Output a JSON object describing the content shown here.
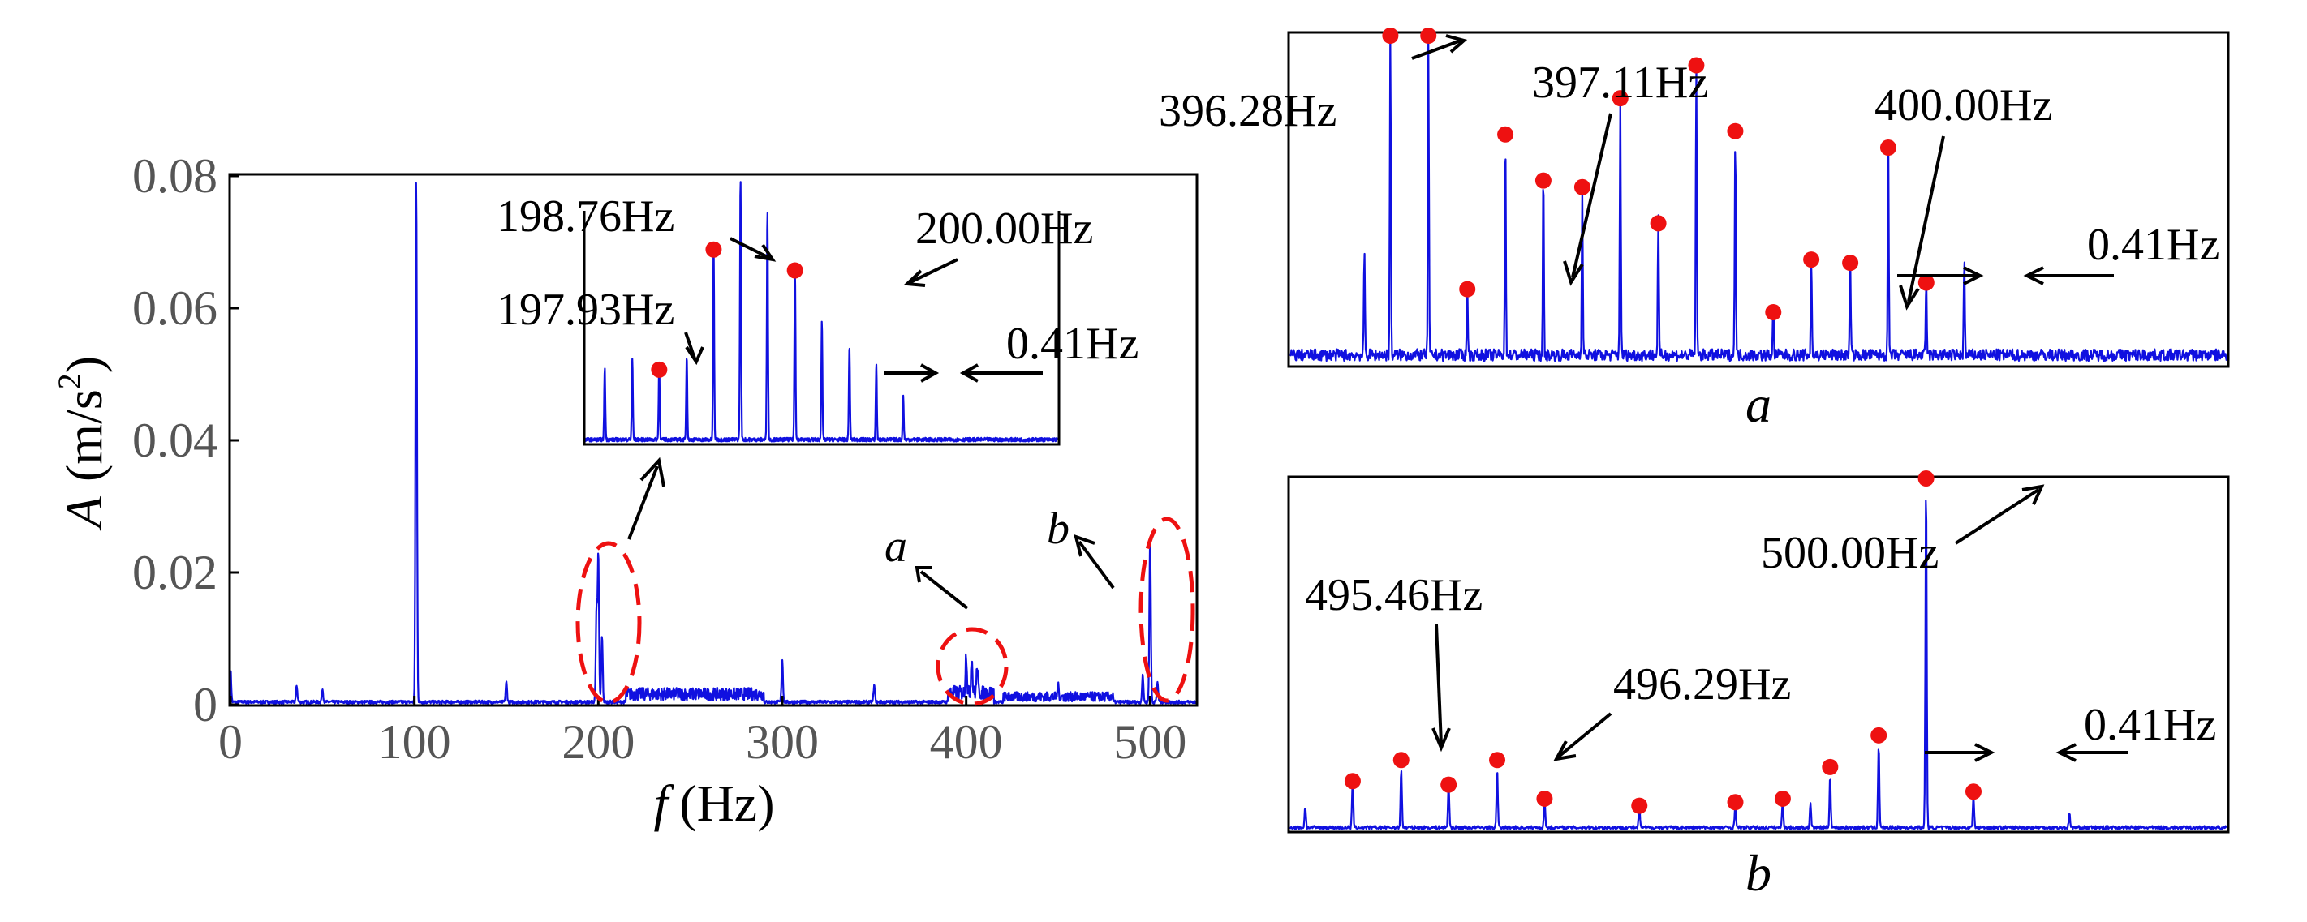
{
  "chart_data": [
    {
      "id": "main",
      "type": "line",
      "xlabel_symbol": "f",
      "xlabel_unit": "(Hz)",
      "ylabel_symbol": "A",
      "ylabel_unit_pre": "(m/s",
      "ylabel_unit_sup": "2",
      "ylabel_unit_post": ")",
      "xlim": [
        0,
        525
      ],
      "ylim": [
        0,
        0.08
      ],
      "x_ticks": [
        0,
        100,
        200,
        300,
        400,
        500
      ],
      "x_tick_labels": [
        "0",
        "100",
        "200",
        "300",
        "400",
        "500"
      ],
      "y_ticks": [
        0,
        0.02,
        0.04,
        0.06,
        0.08
      ],
      "y_tick_labels": [
        "0",
        "0.02",
        "0.04",
        "0.06",
        "0.08"
      ],
      "peaks": [
        {
          "x": 0,
          "y": 0.005
        },
        {
          "x": 36,
          "y": 0.0025
        },
        {
          "x": 50,
          "y": 0.002
        },
        {
          "x": 101,
          "y": 0.079
        },
        {
          "x": 150,
          "y": 0.003
        },
        {
          "x": 199,
          "y": 0.014
        },
        {
          "x": 200,
          "y": 0.022
        },
        {
          "x": 202,
          "y": 0.01
        },
        {
          "x": 300,
          "y": 0.0065
        },
        {
          "x": 350,
          "y": 0.0025
        },
        {
          "x": 400,
          "y": 0.006
        },
        {
          "x": 403,
          "y": 0.0055
        },
        {
          "x": 406,
          "y": 0.004
        },
        {
          "x": 450,
          "y": 0.0015
        },
        {
          "x": 496,
          "y": 0.004
        },
        {
          "x": 500,
          "y": 0.025
        },
        {
          "x": 504,
          "y": 0.003
        }
      ],
      "annotations": [
        {
          "text": "a",
          "target_x": 403
        },
        {
          "text": "b",
          "target_x": 500
        }
      ]
    },
    {
      "id": "inset",
      "type": "line",
      "xlim": [
        196.8,
        204.0
      ],
      "ylim": [
        0,
        1
      ],
      "peaks": [
        {
          "x": 197.1,
          "y": 0.27
        },
        {
          "x": 197.52,
          "y": 0.31
        },
        {
          "x": 197.93,
          "y": 0.28
        },
        {
          "x": 198.35,
          "y": 0.32
        },
        {
          "x": 198.76,
          "y": 0.74
        },
        {
          "x": 199.17,
          "y": 1.0
        },
        {
          "x": 199.58,
          "y": 0.88
        },
        {
          "x": 200.0,
          "y": 0.66
        },
        {
          "x": 200.41,
          "y": 0.46
        },
        {
          "x": 200.83,
          "y": 0.36
        },
        {
          "x": 201.24,
          "y": 0.29
        },
        {
          "x": 201.65,
          "y": 0.17
        }
      ],
      "markers": [
        197.93,
        198.76,
        200.0
      ],
      "labels": [
        "197.93Hz",
        "198.76Hz",
        "200.00Hz"
      ],
      "spacing_label": "0.41Hz"
    },
    {
      "id": "a",
      "type": "line",
      "caption": "a",
      "xlim": [
        395.2,
        405.3
      ],
      "ylim": [
        0,
        1
      ],
      "peaks": [
        {
          "x": 396.0,
          "y": 0.33
        },
        {
          "x": 396.28,
          "y": 1.0
        },
        {
          "x": 396.69,
          "y": 1.0
        },
        {
          "x": 397.11,
          "y": 0.22
        },
        {
          "x": 397.52,
          "y": 0.68
        },
        {
          "x": 397.93,
          "y": 0.56
        },
        {
          "x": 398.35,
          "y": 0.53
        },
        {
          "x": 398.76,
          "y": 0.8
        },
        {
          "x": 399.17,
          "y": 0.42
        },
        {
          "x": 399.58,
          "y": 0.9
        },
        {
          "x": 400.0,
          "y": 0.7
        },
        {
          "x": 400.41,
          "y": 0.15
        },
        {
          "x": 400.82,
          "y": 0.31
        },
        {
          "x": 401.24,
          "y": 0.3
        },
        {
          "x": 401.65,
          "y": 0.65
        },
        {
          "x": 402.06,
          "y": 0.24
        },
        {
          "x": 402.47,
          "y": 0.3
        }
      ],
      "markers": [
        396.28,
        396.69,
        397.11,
        397.52,
        397.93,
        398.35,
        398.76,
        399.17,
        399.58,
        400.0,
        400.41,
        400.82,
        401.24,
        401.65,
        402.06
      ],
      "marker_levels": [
        1.0,
        1.0,
        0.23,
        0.7,
        0.56,
        0.54,
        0.81,
        0.43,
        0.91,
        0.71,
        0.16,
        0.32,
        0.31,
        0.66,
        0.25
      ],
      "labels": [
        "396.28Hz",
        "397.11Hz",
        "400.00Hz"
      ],
      "spacing_label": "0.41Hz"
    },
    {
      "id": "b",
      "type": "line",
      "caption": "b",
      "xlim": [
        494.5,
        502.6
      ],
      "ylim": [
        0,
        1
      ],
      "peaks": [
        {
          "x": 494.63,
          "y": 0.06
        },
        {
          "x": 495.04,
          "y": 0.13
        },
        {
          "x": 495.46,
          "y": 0.17
        },
        {
          "x": 495.87,
          "y": 0.12
        },
        {
          "x": 496.29,
          "y": 0.17
        },
        {
          "x": 496.7,
          "y": 0.08
        },
        {
          "x": 497.52,
          "y": 0.06
        },
        {
          "x": 498.35,
          "y": 0.07
        },
        {
          "x": 498.76,
          "y": 0.08
        },
        {
          "x": 499.0,
          "y": 0.07
        },
        {
          "x": 499.17,
          "y": 0.15
        },
        {
          "x": 499.59,
          "y": 0.24
        },
        {
          "x": 500.0,
          "y": 1.0
        },
        {
          "x": 500.41,
          "y": 0.09
        },
        {
          "x": 501.24,
          "y": 0.04
        }
      ],
      "markers": [
        495.04,
        495.46,
        495.87,
        496.29,
        496.7,
        497.52,
        498.35,
        498.76,
        499.17,
        499.59,
        500.0,
        500.41
      ],
      "marker_levels": [
        0.14,
        0.2,
        0.13,
        0.2,
        0.09,
        0.07,
        0.08,
        0.09,
        0.18,
        0.27,
        1.0,
        0.11
      ],
      "labels": [
        "495.46Hz",
        "496.29Hz",
        "500.00Hz"
      ],
      "spacing_label": "0.41Hz"
    }
  ]
}
